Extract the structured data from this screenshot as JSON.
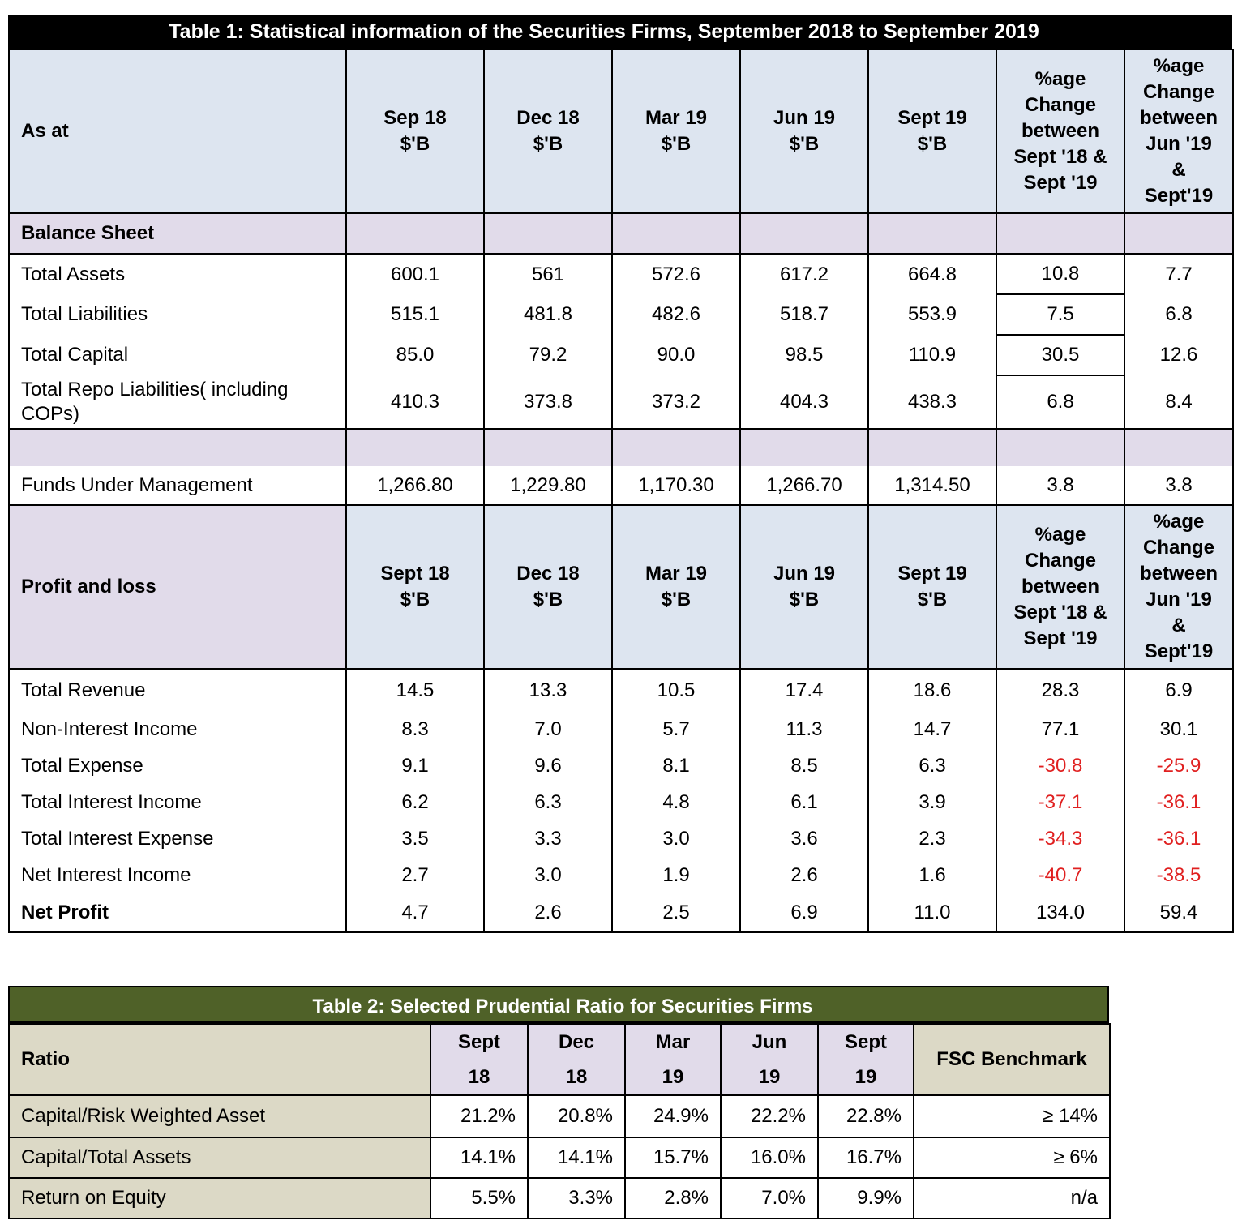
{
  "table1": {
    "title": "Table 1: Statistical information of the Securities Firms, September 2018 to September 2019",
    "as_at_label": "As at",
    "balance_sheet_label": "Balance Sheet",
    "header_bs": [
      "Sep 18\n$'B",
      "Dec 18\n$'B",
      "Mar 19\n$'B",
      "Jun 19\n$'B",
      "Sept 19\n$'B",
      "%age\nChange\nbetween\nSept '18 &\nSept '19",
      "%age\nChange\nbetween\nJun '19\n&\nSept'19"
    ],
    "balance_rows": [
      {
        "label": "Total Assets",
        "values": [
          "600.1",
          "561",
          "572.6",
          "617.2",
          "664.8",
          "10.8",
          "7.7"
        ]
      },
      {
        "label": "Total Liabilities",
        "values": [
          "515.1",
          "481.8",
          "482.6",
          "518.7",
          "553.9",
          "7.5",
          "6.8"
        ]
      },
      {
        "label": "Total Capital",
        "values": [
          "85.0",
          "79.2",
          "90.0",
          "98.5",
          "110.9",
          "30.5",
          "12.6"
        ]
      },
      {
        "label": "Total Repo Liabilities( including COPs)",
        "values": [
          "410.3",
          "373.8",
          "373.2",
          "404.3",
          "438.3",
          "6.8",
          "8.4"
        ]
      }
    ],
    "funds_row": {
      "label": "Funds Under Management",
      "values": [
        "1,266.80",
        "1,229.80",
        "1,170.30",
        "1,266.70",
        "1,314.50",
        "3.8",
        "3.8"
      ]
    },
    "profit_loss_label": "Profit and loss",
    "header_pl": [
      "Sept 18\n$'B",
      "Dec 18\n$'B",
      "Mar 19\n$'B",
      "Jun 19\n$'B",
      "Sept 19\n$'B",
      "%age\nChange\nbetween\nSept '18 &\nSept '19",
      "%age\nChange\nbetween\nJun '19\n&\nSept'19"
    ],
    "pl_rows": [
      {
        "label": "Total Revenue",
        "values": [
          "14.5",
          "13.3",
          "10.5",
          "17.4",
          "18.6",
          "28.3",
          "6.9"
        ]
      },
      {
        "label": "Non-Interest Income",
        "values": [
          "8.3",
          "7.0",
          "5.7",
          "11.3",
          "14.7",
          "77.1",
          "30.1"
        ]
      },
      {
        "label": "Total Expense",
        "values": [
          "9.1",
          "9.6",
          "8.1",
          "8.5",
          "6.3",
          "-30.8",
          "-25.9"
        ]
      },
      {
        "label": "Total Interest Income",
        "values": [
          "6.2",
          "6.3",
          "4.8",
          "6.1",
          "3.9",
          "-37.1",
          "-36.1"
        ]
      },
      {
        "label": "Total Interest Expense",
        "values": [
          "3.5",
          "3.3",
          "3.0",
          "3.6",
          "2.3",
          "-34.3",
          "-36.1"
        ]
      },
      {
        "label": "Net Interest Income",
        "values": [
          "2.7",
          "3.0",
          "1.9",
          "2.6",
          "1.6",
          "-40.7",
          "-38.5"
        ]
      },
      {
        "label": "Net Profit",
        "values": [
          "4.7",
          "2.6",
          "2.5",
          "6.9",
          "11.0",
          "134.0",
          "59.4"
        ]
      }
    ],
    "negative_color": "#e02020",
    "header_fill": "#dde5f0",
    "section_fill": "#e1dbea"
  },
  "table2": {
    "title": "Table 2: Selected Prudential Ratio for Securities Firms",
    "ratio_label": "Ratio",
    "periods": [
      {
        "top": "Sept",
        "bottom": "18"
      },
      {
        "top": "Dec",
        "bottom": "18"
      },
      {
        "top": "Mar",
        "bottom": "19"
      },
      {
        "top": "Jun",
        "bottom": "19"
      },
      {
        "top": "Sept",
        "bottom": "19"
      }
    ],
    "benchmark_label": "FSC Benchmark",
    "rows": [
      {
        "label": "Capital/Risk Weighted Asset",
        "values": [
          "21.2%",
          "20.8%",
          "24.9%",
          "22.2%",
          "22.8%"
        ],
        "benchmark": "≥ 14%"
      },
      {
        "label": "Capital/Total Assets",
        "values": [
          "14.1%",
          "14.1%",
          "15.7%",
          "16.0%",
          "16.7%"
        ],
        "benchmark": "≥ 6%"
      },
      {
        "label": "Return on Equity",
        "values": [
          "5.5%",
          "3.3%",
          "2.8%",
          "7.0%",
          "9.9%"
        ],
        "benchmark": "n/a"
      }
    ],
    "title_fill": "#4f6128",
    "label_fill": "#dcd9c6"
  }
}
